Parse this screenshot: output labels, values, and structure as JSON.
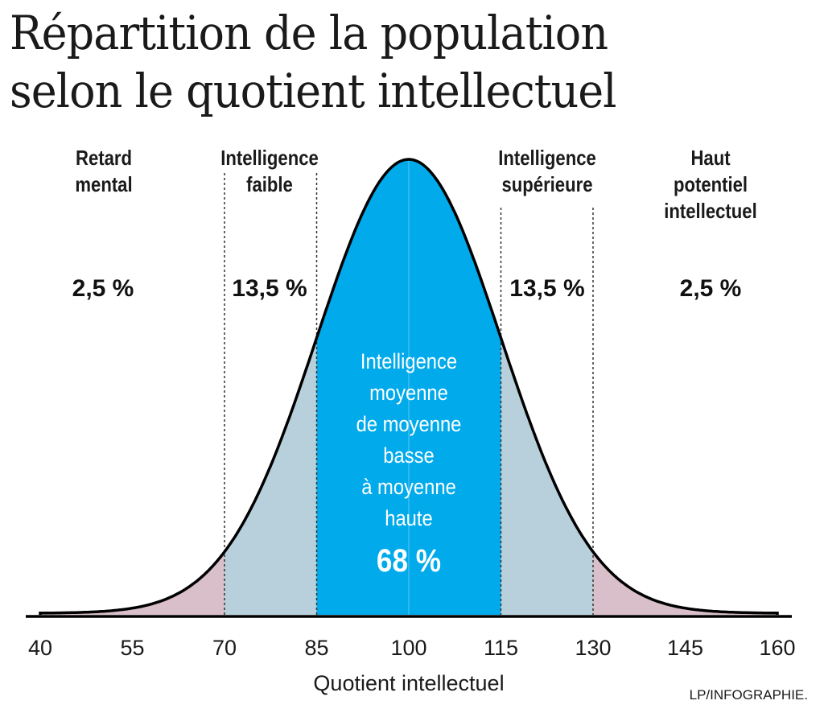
{
  "chart_data": {
    "type": "area",
    "title": "Répartition de la population selon le quotient intellectuel",
    "title_lines": [
      "Répartition de la population",
      "selon le quotient intellectuel"
    ],
    "xlabel": "Quotient intellectuel",
    "xlim": [
      40,
      160
    ],
    "x_ticks": [
      "40",
      "55",
      "70",
      "85",
      "100",
      "115",
      "130",
      "145",
      "160"
    ],
    "distribution": {
      "kind": "normal",
      "mean": 100,
      "sd": 15
    },
    "regions": [
      {
        "name": "Retard mental",
        "lines": [
          "Retard",
          "mental"
        ],
        "range": [
          40,
          70
        ],
        "percent": "2,5 %",
        "color": "#d9bfca"
      },
      {
        "name": "Intelligence faible",
        "lines": [
          "Intelligence",
          "faible"
        ],
        "range": [
          70,
          85
        ],
        "percent": "13,5 %",
        "color": "#b8d0dc"
      },
      {
        "name": "Intelligence moyenne",
        "lines": [
          "Intelligence",
          "moyenne",
          "de moyenne",
          "basse",
          "à moyenne",
          "haute"
        ],
        "range": [
          85,
          115
        ],
        "percent": "68 %",
        "color": "#00aaeb"
      },
      {
        "name": "Intelligence supérieure",
        "lines": [
          "Intelligence",
          "supérieure"
        ],
        "range": [
          115,
          130
        ],
        "percent": "13,5 %",
        "color": "#b8d0dc"
      },
      {
        "name": "Haut potentiel intellectuel",
        "lines": [
          "Haut",
          "potentiel",
          "intellectuel"
        ],
        "range": [
          130,
          160
        ],
        "percent": "2,5 %",
        "color": "#d9bfca"
      }
    ],
    "credit": "LP/INFOGRAPHIE."
  }
}
